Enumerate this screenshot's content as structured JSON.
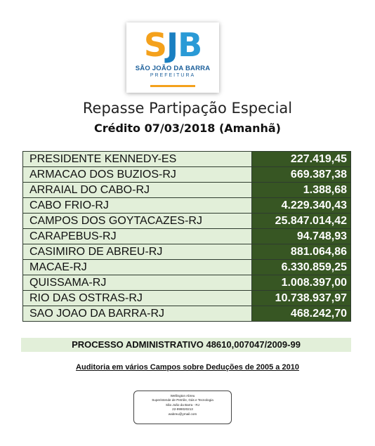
{
  "logo": {
    "letters": [
      "S",
      "J",
      "B"
    ],
    "name": "SÃO JOÃO DA BARRA",
    "sub": "PREFEITURA",
    "colors": {
      "s": "#f4a11c",
      "j": "#1a7fc1",
      "b": "#2a9ad6",
      "bar": "#f4a11c"
    }
  },
  "title": "Repasse Partipação Especial",
  "subtitle": "Crédito 07/03/2018 (Amanhã)",
  "rows": [
    {
      "city": "PRESIDENTE KENNEDY-ES",
      "value": "227.419,45"
    },
    {
      "city": "ARMACAO DOS BUZIOS-RJ",
      "value": "669.387,38"
    },
    {
      "city": "ARRAIAL DO CABO-RJ",
      "value": "1.388,68"
    },
    {
      "city": "CABO FRIO-RJ",
      "value": "4.229.340,43"
    },
    {
      "city": "CAMPOS DOS GOYTACAZES-RJ",
      "value": "25.847.014,42"
    },
    {
      "city": "CARAPEBUS-RJ",
      "value": "94.748,93"
    },
    {
      "city": "CASIMIRO DE ABREU-RJ",
      "value": "881.064,86"
    },
    {
      "city": "MACAE-RJ",
      "value": "6.330.859,25"
    },
    {
      "city": "QUISSAMA-RJ",
      "value": "1.008.397,00"
    },
    {
      "city": "RIO DAS OSTRAS-RJ",
      "value": "10.738.937,97"
    },
    {
      "city": "SAO JOAO DA BARRA-RJ",
      "value": "468.242,70"
    }
  ],
  "processo": "PROCESSO ADMINISTRATIVO 48610,007047/2009-99",
  "auditoria": "Auditoria em vários Campos sobre Deduções de 2005 a 2010",
  "card": {
    "lines": [
      "Wellington Abreu",
      "Superintende de Petróle, Gás e Tecnologia",
      "São João da Barra - RJ",
      "22-999020213",
      "wabreu@ymail.com"
    ]
  },
  "colors": {
    "city_bg": "#e2efd9",
    "value_bg": "#375623",
    "value_text": "#ffffff"
  }
}
